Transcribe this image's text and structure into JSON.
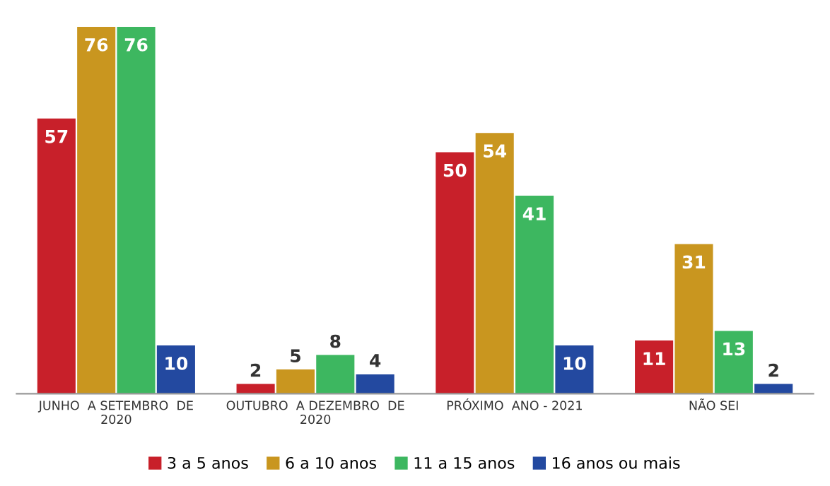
{
  "chart_data": {
    "type": "bar",
    "categories": [
      "JUNHO  A SETEMBRO  DE\n2020",
      "OUTUBRO  A DEZEMBRO  DE\n2020",
      "PRÓXIMO  ANO - 2021",
      "NÃO SEI"
    ],
    "series": [
      {
        "name": "3 a 5 anos",
        "color": "#c8202a",
        "values": [
          57,
          2,
          50,
          11
        ]
      },
      {
        "name": "6 a 10 anos",
        "color": "#c9961f",
        "values": [
          76,
          5,
          54,
          31
        ]
      },
      {
        "name": "11 a 15 anos",
        "color": "#3db760",
        "values": [
          76,
          8,
          41,
          13
        ]
      },
      {
        "name": "16 anos ou mais",
        "color": "#2349a0",
        "values": [
          10,
          4,
          10,
          2
        ]
      }
    ],
    "data_labels": true,
    "legend": "bottom",
    "grid": false
  }
}
